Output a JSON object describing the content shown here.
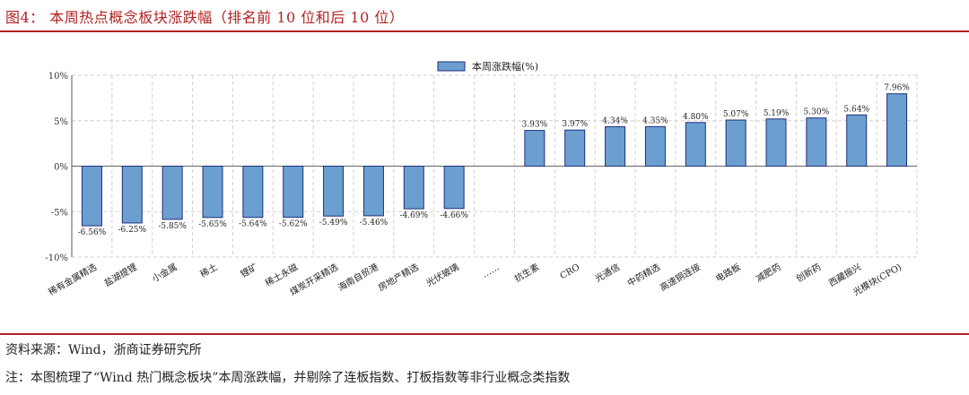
{
  "figure": {
    "title": "图4： 本周热点概念板块涨跌幅（排名前 10 位和后 10 位）",
    "source": "资料来源：Wind，浙商证券研究所",
    "note": "注：本图梳理了“Wind 热门概念板块”本周涨跌幅，并剔除了连板指数、打板指数等非行业概念类指数"
  },
  "colors": {
    "bar_fill": "#6b9fd0",
    "bar_stroke": "#1f2f7a",
    "rule": "#b22222",
    "grid": "#d0d0d0"
  },
  "chart_data": {
    "type": "bar",
    "title": "",
    "xlabel": "",
    "ylabel": "",
    "legend": {
      "label": "本周涨跌幅(%)",
      "position": "top-center"
    },
    "ylim": [
      -10,
      10
    ],
    "yticks": [
      -10,
      -5,
      0,
      5,
      10
    ],
    "ytick_labels": [
      "-10%",
      "-5%",
      "0%",
      "5%",
      "10%"
    ],
    "grid": true,
    "categories": [
      "稀有金属精选",
      "盐湖提锂",
      "小金属",
      "稀土",
      "锂矿",
      "稀土永磁",
      "煤炭开采精选",
      "海南自贸港",
      "房地产精选",
      "光伏玻璃",
      "……",
      "抗生素",
      "CRO",
      "光通信",
      "中药精选",
      "高速铜连接",
      "电路板",
      "减肥药",
      "创新药",
      "西藏振兴",
      "光模块(CPO)"
    ],
    "values": [
      -6.56,
      -6.25,
      -5.85,
      -5.65,
      -5.64,
      -5.62,
      -5.49,
      -5.46,
      -4.69,
      -4.66,
      null,
      3.93,
      3.97,
      4.34,
      4.35,
      4.8,
      5.07,
      5.19,
      5.3,
      5.64,
      7.96
    ],
    "value_labels": [
      "-6.56%",
      "-6.25%",
      "-5.85%",
      "-5.65%",
      "-5.64%",
      "-5.62%",
      "-5.49%",
      "-5.46%",
      "-4.69%",
      "-4.66%",
      "",
      "3.93%",
      "3.97%",
      "4.34%",
      "4.35%",
      "4.80%",
      "5.07%",
      "5.19%",
      "5.30%",
      "5.64%",
      "7.96%"
    ]
  }
}
